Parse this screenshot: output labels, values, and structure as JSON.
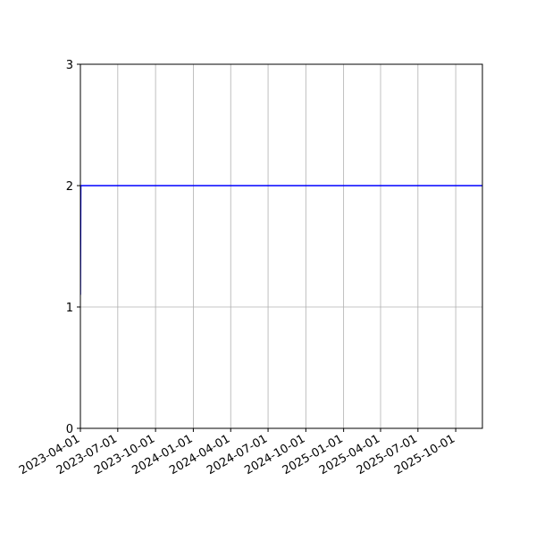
{
  "chart_data": {
    "type": "line",
    "title": "",
    "xlabel": "",
    "ylabel": "",
    "xlim": [
      "2023-04-01",
      "2025-12-05"
    ],
    "ylim": [
      0,
      3
    ],
    "grid": true,
    "x_ticks": [
      "2023-04-01",
      "2023-07-01",
      "2023-10-01",
      "2024-01-01",
      "2024-04-01",
      "2024-07-01",
      "2024-10-01",
      "2025-01-01",
      "2025-04-01",
      "2025-07-01",
      "2025-10-01"
    ],
    "y_ticks": [
      0,
      1,
      2,
      3
    ],
    "series": [
      {
        "color": "#0000ff",
        "x": [
          "2023-04-01",
          "2023-04-02",
          "2025-12-05"
        ],
        "y": [
          1.1,
          2,
          2
        ]
      }
    ]
  }
}
